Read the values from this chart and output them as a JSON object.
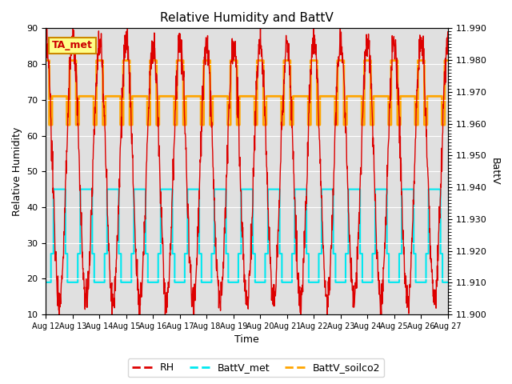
{
  "title": "Relative Humidity and BattV",
  "xlabel": "Time",
  "ylabel_left": "Relative Humidity",
  "ylabel_right": "BattV",
  "ylim_left": [
    10,
    90
  ],
  "ylim_right": [
    11.9,
    11.99
  ],
  "yticks_left": [
    10,
    20,
    30,
    40,
    50,
    60,
    70,
    80,
    90
  ],
  "yticks_right": [
    11.9,
    11.91,
    11.92,
    11.93,
    11.94,
    11.95,
    11.96,
    11.97,
    11.98,
    11.99
  ],
  "xtick_labels": [
    "Aug 12",
    "Aug 13",
    "Aug 14",
    "Aug 15",
    "Aug 16",
    "Aug 17",
    "Aug 18",
    "Aug 19",
    "Aug 20",
    "Aug 21",
    "Aug 22",
    "Aug 23",
    "Aug 24",
    "Aug 25",
    "Aug 26",
    "Aug 27"
  ],
  "bg_color": "#e0e0e0",
  "rh_color": "#dd0000",
  "battv_met_color": "#00e8f0",
  "battv_soilco2_color": "#ffa500",
  "legend_rh": "RH",
  "legend_met": "BattV_met",
  "legend_soilco2": "BattV_soilco2",
  "annotation_text": "TA_met",
  "n_days": 15
}
